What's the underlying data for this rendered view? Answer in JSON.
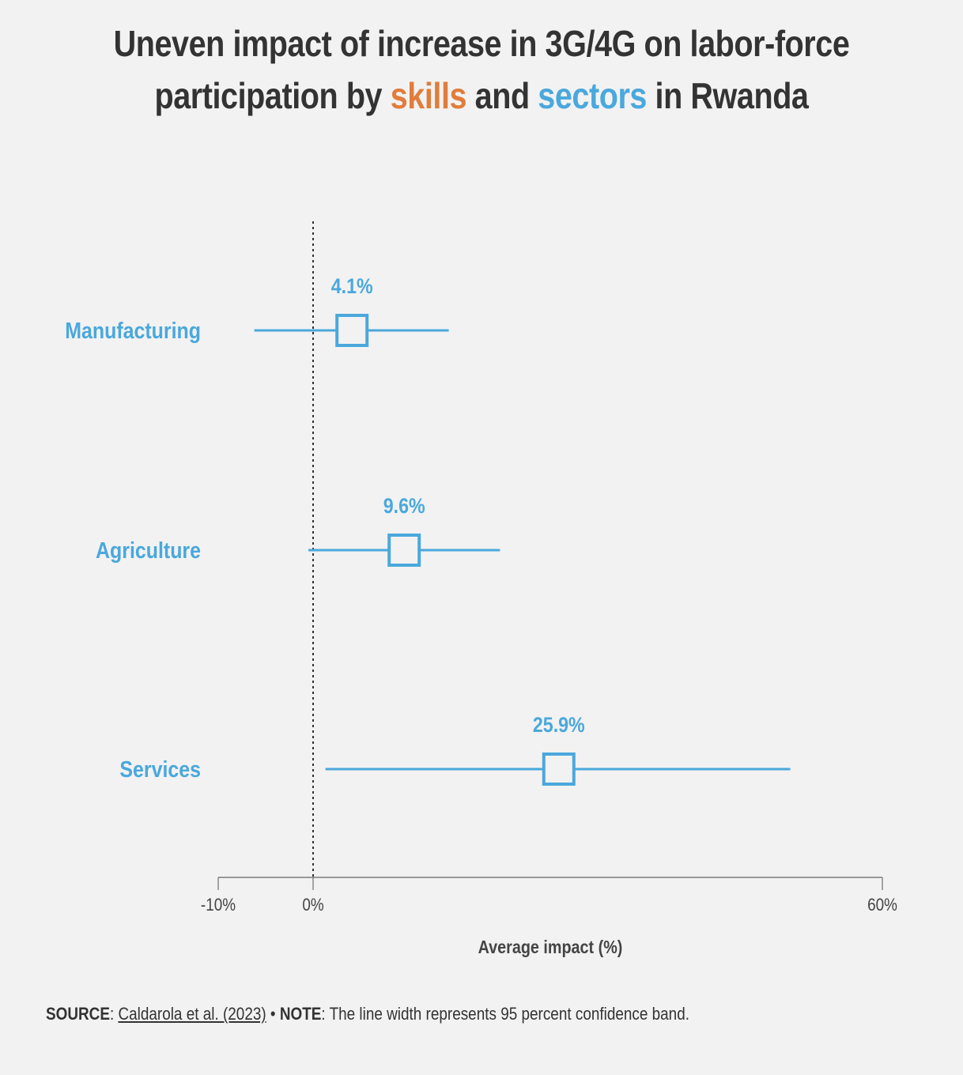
{
  "title": {
    "part1": "Uneven impact of increase in 3G/4G on labor-force participation by ",
    "skills": "skills",
    "part2": " and ",
    "sectors": "sectors",
    "part3": " in Rwanda"
  },
  "colors": {
    "skills": "#e07d3c",
    "sectors": "#4aa8dc",
    "text": "#333333",
    "axis": "#999999",
    "background": "#f2f2f2"
  },
  "chart_data": {
    "type": "forest",
    "title": "Uneven impact of increase in 3G/4G on labor-force participation by skills and sectors in Rwanda",
    "xlabel": "Average impact (%)",
    "ylabel": "",
    "xlim": [
      -10,
      60
    ],
    "xticks": [
      -10,
      0,
      60
    ],
    "xtick_labels": [
      "-10%",
      "0%",
      "60%"
    ],
    "reference_line": 0,
    "grid": false,
    "series": [
      {
        "name": "Manufacturing",
        "value": 4.1,
        "label": "4.1%",
        "ci_low": -6.2,
        "ci_high": 14.3
      },
      {
        "name": "Agriculture",
        "value": 9.6,
        "label": "9.6%",
        "ci_low": -0.5,
        "ci_high": 19.7
      },
      {
        "name": "Services",
        "value": 25.9,
        "label": "25.9%",
        "ci_low": 1.3,
        "ci_high": 50.3
      }
    ]
  },
  "footer": {
    "source_label": "SOURCE",
    "source_text": "Caldarola et al. (2023)",
    "bullet": " • ",
    "note_label": "NOTE",
    "note_text": ": The line width represents 95 percent confidence band."
  }
}
